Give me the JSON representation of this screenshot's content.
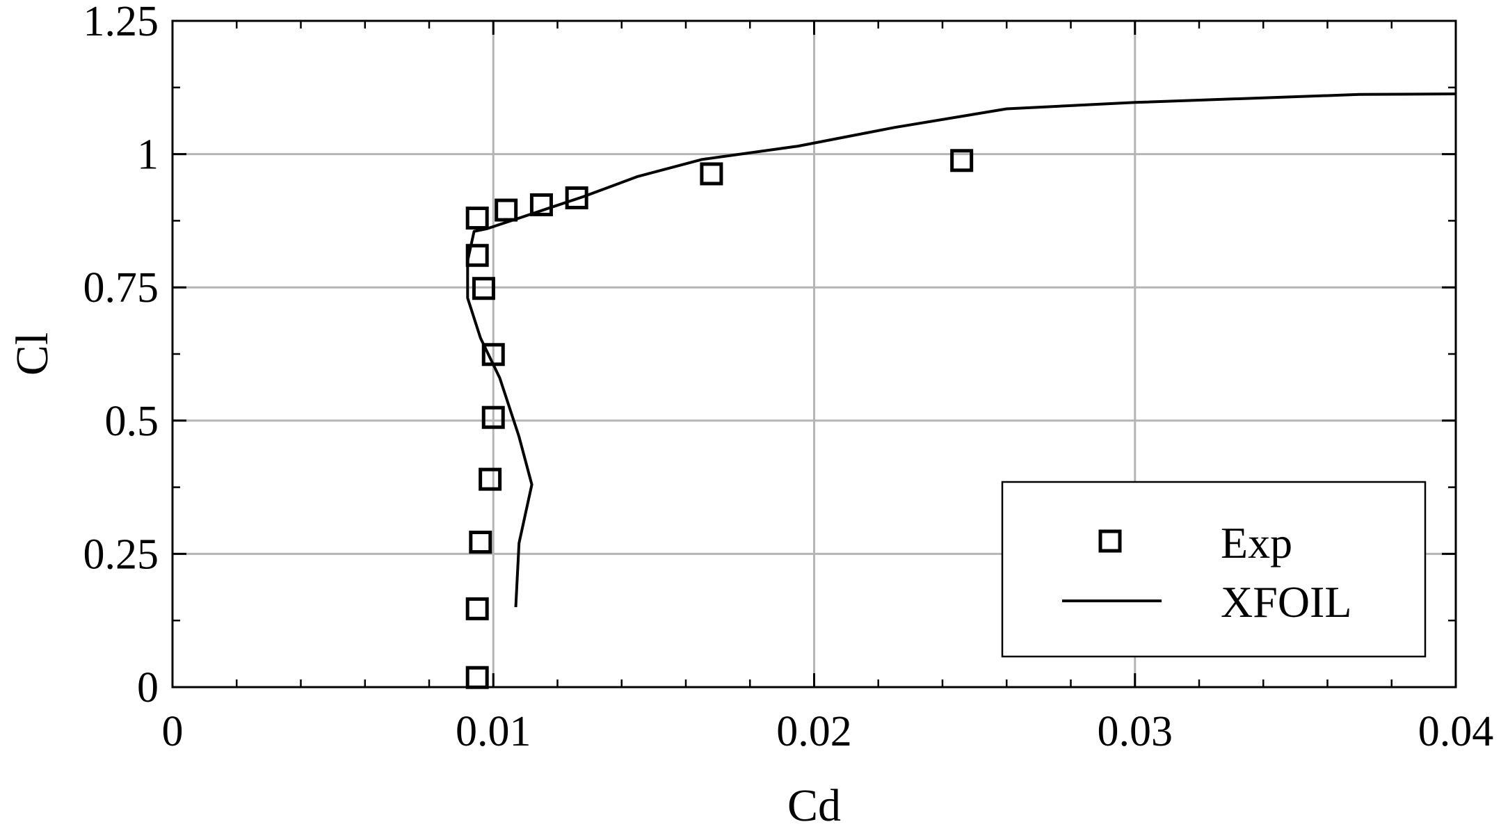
{
  "chart_data": {
    "type": "scatter",
    "xlabel": "Cd",
    "ylabel": "Cl",
    "xlim": [
      0,
      0.04
    ],
    "ylim": [
      0,
      1.25
    ],
    "x_ticks": [
      0,
      0.01,
      0.02,
      0.03,
      0.04
    ],
    "x_tick_labels": [
      "0",
      "0.01",
      "0.02",
      "0.03",
      "0.04"
    ],
    "y_ticks": [
      0,
      0.25,
      0.5,
      0.75,
      1,
      1.25
    ],
    "y_tick_labels": [
      "0",
      "0.25",
      "0.5",
      "0.75",
      "1",
      "1.25"
    ],
    "x_minor_step": 0.002,
    "y_minor_step": 0.125,
    "grid": true,
    "legend_position": "bottom-right",
    "colors": {
      "axis": "#000000",
      "grid": "#b5b5b5",
      "series": "#000000"
    },
    "series": [
      {
        "name": "Exp",
        "type": "scatter",
        "marker": "square",
        "points": [
          {
            "x": 0.0095,
            "y": 0.88
          },
          {
            "x": 0.0104,
            "y": 0.895
          },
          {
            "x": 0.0115,
            "y": 0.905
          },
          {
            "x": 0.0126,
            "y": 0.918
          },
          {
            "x": 0.0168,
            "y": 0.963
          },
          {
            "x": 0.0246,
            "y": 0.988
          },
          {
            "x": 0.0095,
            "y": 0.81
          },
          {
            "x": 0.0097,
            "y": 0.748
          },
          {
            "x": 0.01,
            "y": 0.624
          },
          {
            "x": 0.01,
            "y": 0.506
          },
          {
            "x": 0.0099,
            "y": 0.39
          },
          {
            "x": 0.0096,
            "y": 0.272
          },
          {
            "x": 0.0095,
            "y": 0.147
          },
          {
            "x": 0.0095,
            "y": 0.018
          }
        ]
      },
      {
        "name": "XFOIL",
        "type": "line",
        "points": [
          {
            "x": 0.0107,
            "y": 0.15
          },
          {
            "x": 0.0108,
            "y": 0.27
          },
          {
            "x": 0.0112,
            "y": 0.38
          },
          {
            "x": 0.0108,
            "y": 0.47
          },
          {
            "x": 0.0102,
            "y": 0.58
          },
          {
            "x": 0.0096,
            "y": 0.655
          },
          {
            "x": 0.0092,
            "y": 0.73
          },
          {
            "x": 0.0092,
            "y": 0.8
          },
          {
            "x": 0.0094,
            "y": 0.855
          },
          {
            "x": 0.0098,
            "y": 0.86
          },
          {
            "x": 0.0108,
            "y": 0.88
          },
          {
            "x": 0.0118,
            "y": 0.9
          },
          {
            "x": 0.0128,
            "y": 0.92
          },
          {
            "x": 0.0145,
            "y": 0.958
          },
          {
            "x": 0.0165,
            "y": 0.99
          },
          {
            "x": 0.0195,
            "y": 1.015
          },
          {
            "x": 0.0225,
            "y": 1.05
          },
          {
            "x": 0.026,
            "y": 1.085
          },
          {
            "x": 0.03,
            "y": 1.097
          },
          {
            "x": 0.037,
            "y": 1.112
          },
          {
            "x": 0.04,
            "y": 1.113
          }
        ]
      }
    ]
  }
}
